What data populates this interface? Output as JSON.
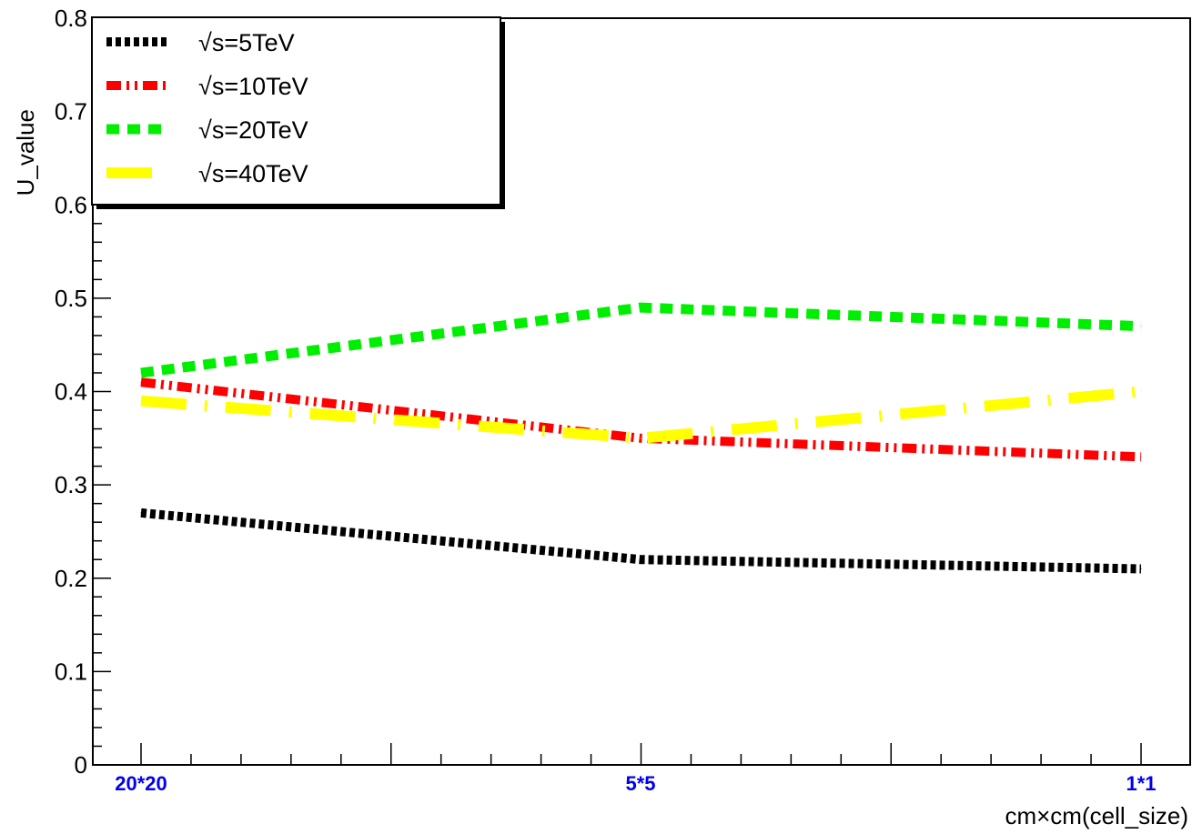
{
  "chart_data": {
    "type": "line",
    "categories": [
      "20*20",
      "5*5",
      "1*1"
    ],
    "series": [
      {
        "name": "√s=5TeV",
        "values": [
          0.27,
          0.22,
          0.21
        ],
        "color": "#000000",
        "style": "dotted"
      },
      {
        "name": "√s=10TeV",
        "values": [
          0.41,
          0.35,
          0.33
        ],
        "color": "#ff0000",
        "style": "dash-dot-dot"
      },
      {
        "name": "√s=20TeV",
        "values": [
          0.42,
          0.49,
          0.47
        ],
        "color": "#00ee00",
        "style": "dashed"
      },
      {
        "name": "√s=40TeV",
        "values": [
          0.39,
          0.35,
          0.4
        ],
        "color": "#ffff00",
        "style": "long-dash-dot"
      }
    ],
    "title": "",
    "xlabel": "cm×cm(cell_size)",
    "ylabel": "U_value",
    "ylim": [
      0,
      0.8
    ],
    "yticks": [
      "0",
      "0.1",
      "0.2",
      "0.3",
      "0.4",
      "0.5",
      "0.6",
      "0.7",
      "0.8"
    ],
    "grid": false,
    "legend": "top-left"
  }
}
